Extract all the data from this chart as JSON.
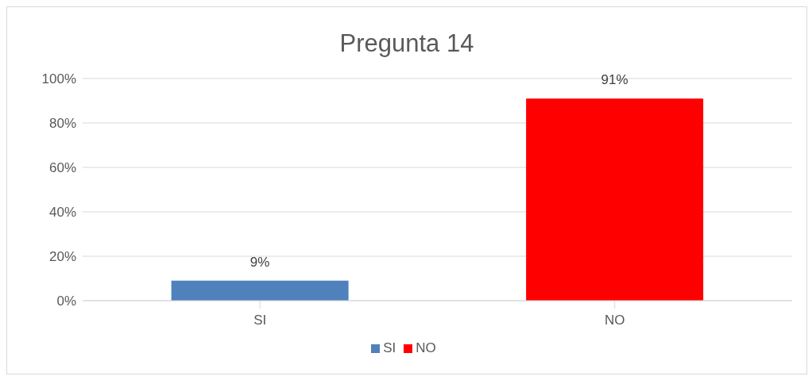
{
  "chart_data": {
    "type": "bar",
    "title": "Pregunta 14",
    "categories": [
      "SI",
      "NO"
    ],
    "series": [
      {
        "name": "SI",
        "color": "#4f81bd",
        "values": [
          9,
          null
        ],
        "value_labels": [
          "9%",
          null
        ]
      },
      {
        "name": "NO",
        "color": "#ff0000",
        "values": [
          null,
          91
        ],
        "value_labels": [
          null,
          "91%"
        ]
      }
    ],
    "ylim": [
      0,
      100
    ],
    "yticks": [
      {
        "value": 0,
        "label": "0%"
      },
      {
        "value": 20,
        "label": "20%"
      },
      {
        "value": 40,
        "label": "40%"
      },
      {
        "value": 60,
        "label": "60%"
      },
      {
        "value": 80,
        "label": "80%"
      },
      {
        "value": 100,
        "label": "100%"
      }
    ],
    "grid": "y",
    "legend": "bottom"
  }
}
